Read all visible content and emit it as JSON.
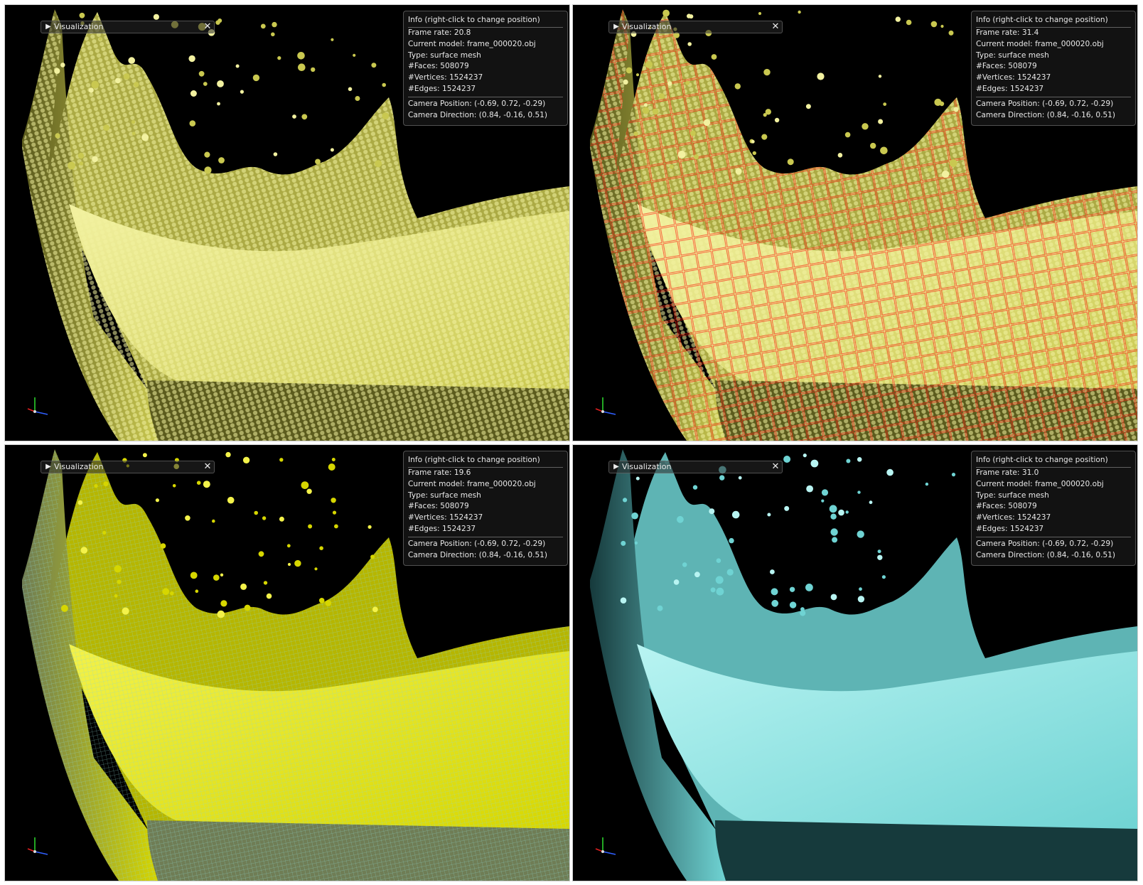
{
  "panels": [
    {
      "id": "points",
      "visualization_label": "Visualization",
      "info": {
        "title": "Info (right-click to change position)",
        "frame_rate": "Frame rate: 20.8",
        "current_model": "Current model: frame_000020.obj",
        "type": "Type: surface mesh",
        "faces": "#Faces: 508079",
        "vertices": "#Vertices: 1524237",
        "edges": "#Edges: 1524237",
        "camera_position": "Camera Position: (-0.69, 0.72, -0.29)",
        "camera_direction": "Camera Direction: (0.84, -0.16, 0.51)"
      },
      "colors": {
        "surface": "#c9c850",
        "highlight": "#f2f1a0",
        "shadow": "#5b5b1d",
        "overlay": ""
      }
    },
    {
      "id": "points-bbox",
      "visualization_label": "Visualization",
      "info": {
        "title": "Info (right-click to change position)",
        "frame_rate": "Frame rate: 31.4",
        "current_model": "Current model: frame_000020.obj",
        "type": "Type: surface mesh",
        "faces": "#Faces: 508079",
        "vertices": "#Vertices: 1524237",
        "edges": "#Edges: 1524237",
        "camera_position": "Camera Position: (-0.69, 0.72, -0.29)",
        "camera_direction": "Camera Direction: (0.84, -0.16, 0.51)"
      },
      "colors": {
        "surface": "#c9c850",
        "highlight": "#f2f1a0",
        "shadow": "#5b5b1d",
        "overlay": "#ff1e10"
      }
    },
    {
      "id": "wireframe",
      "visualization_label": "Visualization",
      "info": {
        "title": "Info (right-click to change position)",
        "frame_rate": "Frame rate: 19.6",
        "current_model": "Current model: frame_000020.obj",
        "type": "Type: surface mesh",
        "faces": "#Faces: 508079",
        "vertices": "#Vertices: 1524237",
        "edges": "#Edges: 1524237",
        "camera_position": "Camera Position: (-0.69, 0.72, -0.29)",
        "camera_direction": "Camera Direction: (0.84, -0.16, 0.51)"
      },
      "colors": {
        "surface": "#d6d600",
        "highlight": "#f3f24a",
        "shadow": "#6f7d55",
        "overlay": "#8fd6d0"
      }
    },
    {
      "id": "surface",
      "visualization_label": "Visualization",
      "info": {
        "title": "Info (right-click to change position)",
        "frame_rate": "Frame rate: 31.0",
        "current_model": "Current model: frame_000020.obj",
        "type": "Type: surface mesh",
        "faces": "#Faces: 508079",
        "vertices": "#Vertices: 1524237",
        "edges": "#Edges: 1524237",
        "camera_position": "Camera Position: (-0.69, 0.72, -0.29)",
        "camera_direction": "Camera Direction: (0.84, -0.16, 0.51)"
      },
      "colors": {
        "surface": "#6fd3d3",
        "highlight": "#b8f4f2",
        "shadow": "#163a3c",
        "overlay": ""
      }
    }
  ],
  "icons": {
    "expand": "triangle-right-icon",
    "close": "close-x-icon",
    "axes": "xyz-axes-icon"
  }
}
